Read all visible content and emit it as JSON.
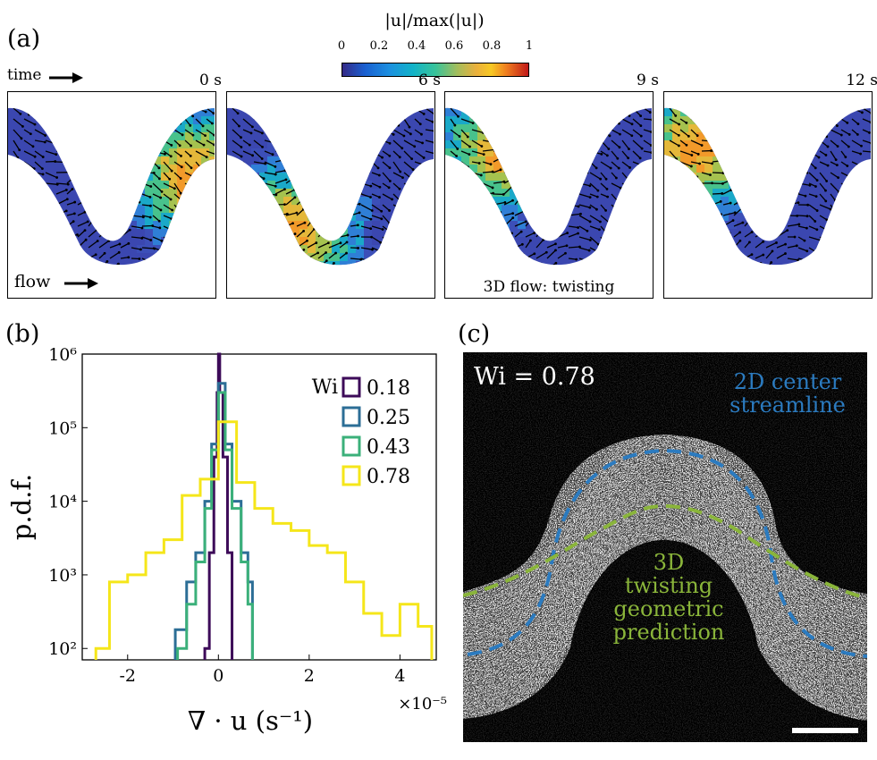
{
  "panel_a": {
    "label": "(a)",
    "time_label": "time",
    "flow_label": "flow",
    "colorbar": {
      "title": "|u|/max(|u|)",
      "ticks": [
        "0",
        "0.2",
        "0.4",
        "0.6",
        "0.8",
        "1"
      ]
    },
    "frames": [
      {
        "time": "0 s",
        "caption": ""
      },
      {
        "time": "6 s",
        "caption": ""
      },
      {
        "time": "9 s",
        "caption": "3D flow: twisting"
      },
      {
        "time": "12 s",
        "caption": ""
      }
    ]
  },
  "panel_b": {
    "label": "(b)",
    "legend_title": "Wi",
    "x_multiplier": "×10⁻⁵"
  },
  "panel_c": {
    "label": "(c)",
    "wi_label": "Wi = 0.78",
    "streamline_label_line1": "2D center",
    "streamline_label_line2": "streamline",
    "prediction_lines": [
      "3D",
      "twisting",
      "geometric",
      "prediction"
    ],
    "colors": {
      "streamline": "#2b7bc0",
      "prediction": "#8ab53a"
    }
  },
  "chart_data": {
    "type": "line",
    "title": "",
    "xlabel": "∇ · u (s⁻¹)",
    "ylabel": "p.d.f.",
    "yscale": "log",
    "xlim": [
      -3.0,
      4.8
    ],
    "ylim": [
      70,
      1000000
    ],
    "xticks": [
      "-2",
      "0",
      "2",
      "4"
    ],
    "yticks": [
      "10²",
      "10³",
      "10⁴",
      "10⁵",
      "10⁶"
    ],
    "legend_position": "top-right",
    "series": [
      {
        "name": "0.18",
        "color": "#3d0b59",
        "x": [
          -0.3,
          -0.2,
          -0.1,
          -0.03,
          0,
          0.03,
          0.1,
          0.2,
          0.3
        ],
        "y": [
          100,
          2000,
          40000,
          300000,
          1000000,
          300000,
          40000,
          2000,
          100
        ]
      },
      {
        "name": "0.25",
        "color": "#2c6e96",
        "x": [
          -0.95,
          -0.7,
          -0.5,
          -0.3,
          -0.15,
          0,
          0.15,
          0.3,
          0.5,
          0.65,
          0.75
        ],
        "y": [
          180,
          800,
          2000,
          10000,
          60000,
          400000,
          60000,
          10000,
          2000,
          800,
          180
        ]
      },
      {
        "name": "0.43",
        "color": "#3bb07a",
        "x": [
          -0.9,
          -0.7,
          -0.5,
          -0.3,
          -0.15,
          0,
          0.15,
          0.3,
          0.5,
          0.65,
          0.75
        ],
        "y": [
          100,
          400,
          1500,
          8000,
          50000,
          300000,
          50000,
          8000,
          1500,
          400,
          100
        ]
      },
      {
        "name": "0.78",
        "color": "#f5e61a",
        "x": [
          -2.7,
          -2.4,
          -2.0,
          -1.6,
          -1.2,
          -0.8,
          -0.4,
          0,
          0.4,
          0.8,
          1.2,
          1.6,
          2.0,
          2.4,
          2.8,
          3.2,
          3.6,
          4.0,
          4.4,
          4.7
        ],
        "y": [
          100,
          800,
          1000,
          2000,
          3000,
          12000,
          20000,
          120000,
          18000,
          8000,
          5000,
          4000,
          2500,
          2000,
          800,
          300,
          150,
          400,
          200,
          100
        ]
      }
    ]
  }
}
